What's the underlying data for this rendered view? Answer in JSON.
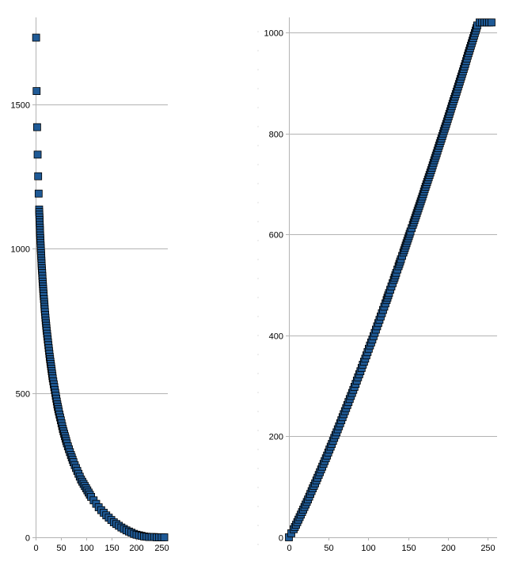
{
  "chart_data": [
    {
      "type": "scatter",
      "title": "",
      "xlabel": "",
      "ylabel": "",
      "xlim": [
        0,
        262
      ],
      "ylim": [
        0,
        1800
      ],
      "x_ticks": [
        0,
        50,
        100,
        150,
        200,
        250
      ],
      "y_ticks": [
        0,
        500,
        1000,
        1500
      ],
      "x_tick_labels": [
        "0",
        "50",
        "100",
        "150",
        "200",
        "250"
      ],
      "y_tick_labels": [
        "0",
        "500",
        "1000",
        "1500"
      ],
      "grid": true,
      "legend": "none",
      "marker": "square",
      "marker_color": "#1f5a96",
      "series": [
        {
          "x": [
            1,
            2,
            3,
            4,
            5,
            6,
            7,
            8,
            9,
            10,
            11,
            12,
            13,
            14,
            15,
            16,
            17,
            18,
            19,
            20,
            22,
            24,
            26,
            28,
            30,
            32,
            34,
            36,
            38,
            40,
            43,
            46,
            50,
            54,
            58,
            62,
            66,
            70,
            75,
            80,
            85,
            90,
            95,
            100,
            105,
            110,
            115,
            120,
            125,
            130,
            135,
            140,
            145,
            150,
            155,
            160,
            165,
            170,
            175,
            180,
            185,
            190,
            195,
            200,
            205,
            210,
            215,
            220,
            225,
            230,
            235,
            240,
            245,
            250,
            255
          ],
          "y": [
            1730,
            1545,
            1420,
            1325,
            1250,
            1190,
            1135,
            1090,
            1045,
            1010,
            975,
            940,
            915,
            885,
            860,
            835,
            815,
            790,
            770,
            750,
            715,
            685,
            655,
            625,
            600,
            575,
            550,
            530,
            510,
            490,
            460,
            435,
            405,
            375,
            350,
            325,
            305,
            285,
            260,
            240,
            220,
            200,
            185,
            170,
            155,
            140,
            128,
            116,
            104,
            94,
            85,
            76,
            68,
            60,
            52,
            46,
            40,
            34,
            29,
            24,
            20,
            16,
            12,
            9,
            7,
            5,
            3,
            2,
            1,
            1,
            1,
            0,
            0,
            0,
            0
          ]
        }
      ]
    },
    {
      "type": "scatter",
      "title": "",
      "xlabel": "",
      "ylabel": "",
      "xlim": [
        0,
        262
      ],
      "ylim": [
        0,
        1030
      ],
      "x_ticks": [
        0,
        50,
        100,
        150,
        200,
        250
      ],
      "y_ticks": [
        0,
        200,
        400,
        600,
        800,
        1000
      ],
      "x_tick_labels": [
        "0",
        "50",
        "100",
        "150",
        "200",
        "250"
      ],
      "y_tick_labels": [
        "0",
        "200",
        "400",
        "600",
        "800",
        "1000"
      ],
      "grid": true,
      "legend": "none",
      "marker": "square",
      "marker_color": "#1f5a96",
      "series": [
        {
          "x": [
            0,
            3,
            6,
            9,
            12,
            15,
            18,
            21,
            24,
            27,
            30,
            33,
            36,
            39,
            42,
            45,
            48,
            51,
            54,
            57,
            60,
            63,
            66,
            69,
            72,
            75,
            78,
            81,
            84,
            87,
            90,
            93,
            96,
            99,
            102,
            105,
            108,
            111,
            114,
            117,
            120,
            123,
            126,
            129,
            132,
            135,
            138,
            141,
            144,
            147,
            150,
            153,
            156,
            159,
            162,
            165,
            168,
            171,
            174,
            177,
            180,
            183,
            186,
            189,
            192,
            195,
            198,
            201,
            204,
            207,
            210,
            213,
            216,
            219,
            222,
            225,
            228,
            231,
            234,
            237,
            240,
            243,
            246,
            249,
            252,
            255
          ],
          "y": [
            0,
            8,
            16,
            25,
            35,
            45,
            55,
            65,
            75,
            86,
            97,
            107,
            118,
            129,
            140,
            151,
            162,
            174,
            185,
            197,
            208,
            220,
            232,
            244,
            256,
            268,
            280,
            292,
            304,
            317,
            329,
            342,
            354,
            367,
            380,
            392,
            405,
            418,
            431,
            444,
            457,
            470,
            484,
            497,
            510,
            524,
            537,
            551,
            564,
            578,
            592,
            606,
            619,
            633,
            647,
            661,
            675,
            690,
            704,
            718,
            732,
            747,
            761,
            776,
            790,
            805,
            819,
            834,
            849,
            864,
            878,
            893,
            908,
            923,
            938,
            954,
            969,
            984,
            999,
            1014,
            1020,
            1020,
            1020,
            1020,
            1020,
            1020
          ]
        }
      ]
    }
  ]
}
